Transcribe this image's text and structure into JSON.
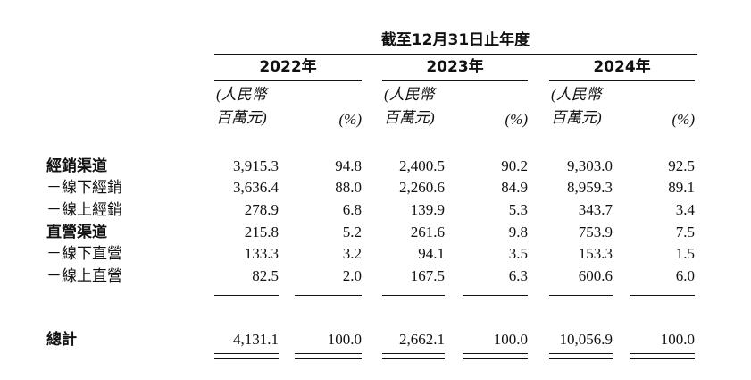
{
  "table": {
    "period": "截至12月31日止年度",
    "years": [
      "2022年",
      "2023年",
      "2024年"
    ],
    "unit_line1": "(人民幣",
    "unit_line2": "百萬元)",
    "pct_label": "(%)",
    "rows": [
      {
        "label": "經銷渠道",
        "bold": true,
        "values": [
          "3,915.3",
          "94.8",
          "2,400.5",
          "90.2",
          "9,303.0",
          "92.5"
        ]
      },
      {
        "label": "－線下經銷",
        "bold": false,
        "values": [
          "3,636.4",
          "88.0",
          "2,260.6",
          "84.9",
          "8,959.3",
          "89.1"
        ]
      },
      {
        "label": "－線上經銷",
        "bold": false,
        "values": [
          "278.9",
          "6.8",
          "139.9",
          "5.3",
          "343.7",
          "3.4"
        ]
      },
      {
        "label": "直營渠道",
        "bold": true,
        "values": [
          "215.8",
          "5.2",
          "261.6",
          "9.8",
          "753.9",
          "7.5"
        ]
      },
      {
        "label": "－線下直營",
        "bold": false,
        "values": [
          "133.3",
          "3.2",
          "94.1",
          "3.5",
          "153.3",
          "1.5"
        ]
      },
      {
        "label": "－線上直營",
        "bold": false,
        "values": [
          "82.5",
          "2.0",
          "167.5",
          "6.3",
          "600.6",
          "6.0"
        ]
      }
    ],
    "total": {
      "label": "總計",
      "bold": true,
      "values": [
        "4,131.1",
        "100.0",
        "2,662.1",
        "100.0",
        "10,056.9",
        "100.0"
      ]
    }
  }
}
